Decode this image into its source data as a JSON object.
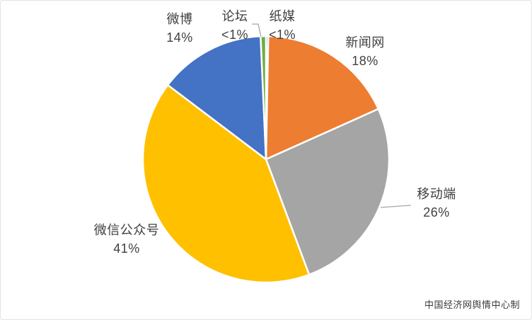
{
  "chart_data": {
    "type": "pie",
    "title": "",
    "start_angle_deg": 0,
    "direction": "clockwise",
    "legend": "none",
    "slice_border_color": "#FFFFFF",
    "label_color": "#404040",
    "leader_line_color": "#A6A6A6",
    "slices": [
      {
        "key": "print-media",
        "label": "纸媒",
        "pct_label": "<1%",
        "value": 0.3,
        "color": "#5B9BD5"
      },
      {
        "key": "news-sites",
        "label": "新闻网",
        "pct_label": "18%",
        "value": 18,
        "color": "#ED7D31"
      },
      {
        "key": "mobile",
        "label": "移动端",
        "pct_label": "26%",
        "value": 26,
        "color": "#A5A5A5"
      },
      {
        "key": "wechat-official-accounts",
        "label": "微信公众号",
        "pct_label": "41%",
        "value": 41,
        "color": "#FFC000"
      },
      {
        "key": "weibo",
        "label": "微博",
        "pct_label": "14%",
        "value": 14,
        "color": "#4472C4"
      },
      {
        "key": "forum",
        "label": "论坛",
        "pct_label": "<1%",
        "value": 0.7,
        "color": "#70AD47"
      }
    ]
  },
  "credit": "中国经济网舆情中心制"
}
